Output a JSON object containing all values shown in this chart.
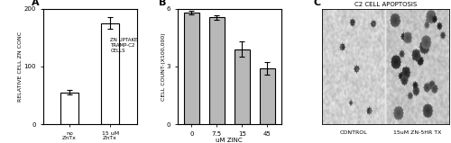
{
  "panel_A": {
    "categories": [
      "no\nZnTx",
      "15 uM\nZnTx"
    ],
    "values": [
      55,
      175
    ],
    "errors": [
      4,
      10
    ],
    "ylabel": "RELATIVE CELL ZN CONC",
    "inner_label": "ZN UPTAKE\nTRAMP-C2\nCELLS",
    "ylim": [
      0,
      200
    ],
    "yticks": [
      0,
      100,
      200
    ],
    "bar_color": "white",
    "edge_color": "black"
  },
  "panel_B": {
    "categories": [
      "0",
      "7.5",
      "15",
      "45"
    ],
    "values": [
      580,
      555,
      390,
      290
    ],
    "errors": [
      10,
      12,
      38,
      32
    ],
    "ylabel": "CELL COUNT-(X100,000)",
    "xlabel": "uM ZINC",
    "ylim": [
      0,
      6
    ],
    "yticks": [
      0,
      3,
      6
    ],
    "bar_color": "#b8b8b8",
    "edge_color": "black"
  },
  "panel_C": {
    "title": "C2 CELL APOPTOSIS",
    "label_left": "CONTROL",
    "label_right": "15uM ZN-5HR TX",
    "bg_color": "#d0d0d0"
  },
  "panel_labels": [
    "A",
    "B",
    "C"
  ],
  "background_color": "#ffffff"
}
